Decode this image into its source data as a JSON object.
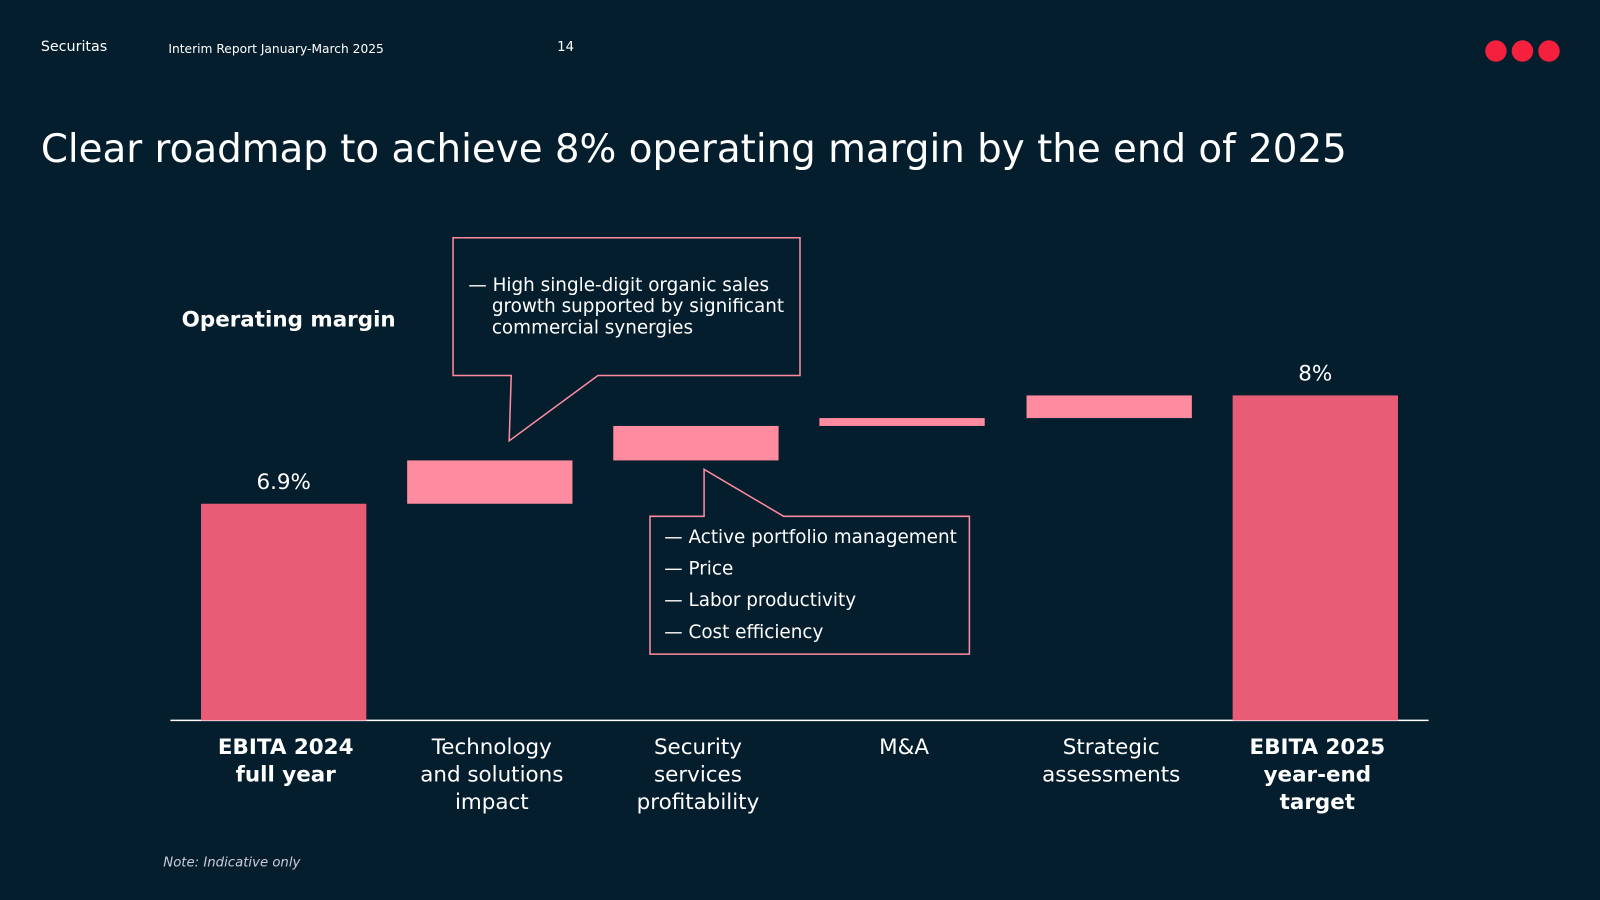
{
  "header": {
    "brand": "Securitas",
    "report": "Interim Report January-March 2025",
    "page": "14"
  },
  "chart_data": {
    "type": "waterfall",
    "title": "Clear roadmap to achieve 8% operating margin by the end of 2025",
    "ylabel": "Operating margin",
    "categories": [
      "EBITA 2024\nfull year",
      "Technology\nand solutions\nimpact",
      "Security\nservices\nprofitability",
      "M&A",
      "Strategic\nassessments",
      "EBITA 2025\nyear-end\ntarget"
    ],
    "measure": [
      "total",
      "relative",
      "relative",
      "relative",
      "relative",
      "total"
    ],
    "values": [
      6.9,
      0.44,
      0.35,
      0.08,
      0.23,
      8
    ],
    "value_labels": [
      "6.9%",
      null,
      null,
      null,
      null,
      "8%"
    ],
    "colors": {
      "total": "#e85d75",
      "relative": "#ff8ba0"
    },
    "ylim": [
      4.7,
      9
    ],
    "annotations": [
      {
        "lines": [
          "— High single-digit organic sales growth supported by significant commercial synergies"
        ]
      },
      {
        "lines": [
          "— Active portfolio management",
          "— Price",
          "— Labor productivity",
          "— Cost efficiency"
        ]
      }
    ],
    "note": "Note: Indicative only"
  }
}
